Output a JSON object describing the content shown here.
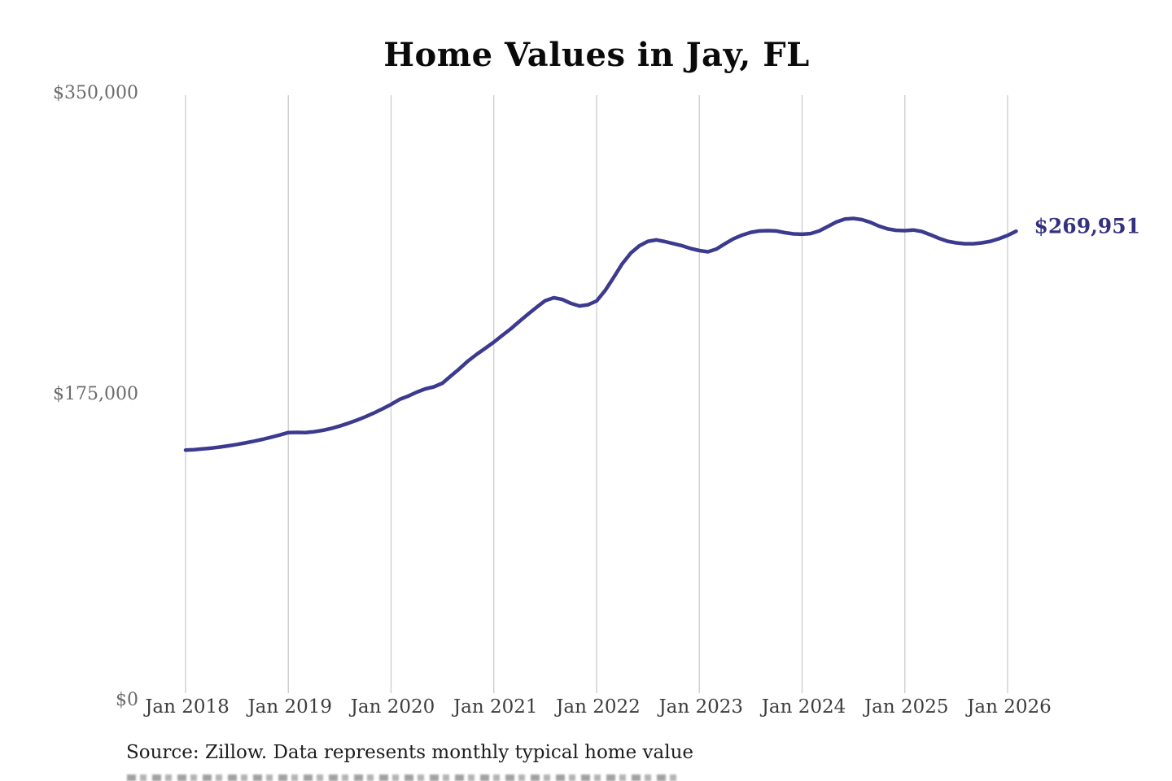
{
  "page": {
    "background": "#ffffff"
  },
  "header": {
    "title": "Home Values in Jay, FL"
  },
  "footer": {
    "source_caption": "Source: Zillow. Data represents monthly typical home value"
  },
  "colors": {
    "line": "#3c3a8f",
    "end_label": "#34317f",
    "gridline": "#cbcbcb",
    "title_text": "#0a0a0a",
    "y_tick_text": "#6b6b6b",
    "x_tick_text": "#3d3d3d",
    "source_text": "#1d1d1d",
    "background": "#ffffff"
  },
  "chart_data": {
    "type": "line",
    "title": "Home Values in Jay, FL",
    "xlabel": "",
    "ylabel": "",
    "ylim": [
      0,
      350000
    ],
    "grid": "vertical-only",
    "legend": "none",
    "y_ticks": [
      {
        "value": 0,
        "label": "$0"
      },
      {
        "value": 175000,
        "label": "$175,000"
      },
      {
        "value": 350000,
        "label": "$350,000"
      }
    ],
    "x_ticks": [
      "Jan 2018",
      "Jan 2019",
      "Jan 2020",
      "Jan 2021",
      "Jan 2022",
      "Jan 2023",
      "Jan 2024",
      "Jan 2025",
      "Jan 2026"
    ],
    "annotation": {
      "label": "$269,951",
      "value": 269951,
      "position": "line-end"
    },
    "series": [
      {
        "name": "Monthly typical home value",
        "months": [
          "2018-01",
          "2018-02",
          "2018-03",
          "2018-04",
          "2018-05",
          "2018-06",
          "2018-07",
          "2018-08",
          "2018-09",
          "2018-10",
          "2018-11",
          "2018-12",
          "2019-01",
          "2019-02",
          "2019-03",
          "2019-04",
          "2019-05",
          "2019-06",
          "2019-07",
          "2019-08",
          "2019-09",
          "2019-10",
          "2019-11",
          "2019-12",
          "2020-01",
          "2020-02",
          "2020-03",
          "2020-04",
          "2020-05",
          "2020-06",
          "2020-07",
          "2020-08",
          "2020-09",
          "2020-10",
          "2020-11",
          "2020-12",
          "2021-01",
          "2021-02",
          "2021-03",
          "2021-04",
          "2021-05",
          "2021-06",
          "2021-07",
          "2021-08",
          "2021-09",
          "2021-10",
          "2021-11",
          "2021-12",
          "2022-01",
          "2022-02",
          "2022-03",
          "2022-04",
          "2022-05",
          "2022-06",
          "2022-07",
          "2022-08",
          "2022-09",
          "2022-10",
          "2022-11",
          "2022-12",
          "2023-01",
          "2023-02",
          "2023-03",
          "2023-04",
          "2023-05",
          "2023-06",
          "2023-07",
          "2023-08",
          "2023-09",
          "2023-10",
          "2023-11",
          "2023-12",
          "2024-01",
          "2024-02",
          "2024-03",
          "2024-04",
          "2024-05",
          "2024-06",
          "2024-07",
          "2024-08",
          "2024-09",
          "2024-10",
          "2024-11",
          "2024-12",
          "2025-01",
          "2025-02",
          "2025-03",
          "2025-04",
          "2025-05",
          "2025-06",
          "2025-07",
          "2025-08",
          "2025-09",
          "2025-10",
          "2025-11",
          "2025-12",
          "2026-01",
          "2026-02"
        ],
        "values": [
          142700,
          143000,
          143400,
          143900,
          144500,
          145200,
          146000,
          146900,
          147900,
          149000,
          150200,
          151500,
          152900,
          153000,
          152900,
          153400,
          154200,
          155300,
          156700,
          158300,
          160100,
          162100,
          164300,
          166700,
          169300,
          172200,
          174100,
          176400,
          178300,
          179500,
          181600,
          185900,
          190100,
          194600,
          198400,
          201900,
          205500,
          209500,
          213300,
          217600,
          221800,
          225800,
          229600,
          231300,
          230300,
          228000,
          226500,
          227200,
          229400,
          235500,
          243100,
          251100,
          257300,
          261500,
          264100,
          264900,
          263900,
          262700,
          261500,
          259900,
          258700,
          258000,
          259600,
          262700,
          265600,
          267700,
          269300,
          270100,
          270300,
          270100,
          269100,
          268400,
          268200,
          268600,
          270100,
          272700,
          275300,
          277000,
          277400,
          276700,
          275100,
          272900,
          271300,
          270500,
          270300,
          270700,
          269800,
          267900,
          265800,
          264100,
          263200,
          262700,
          262700,
          263200,
          264100,
          265600,
          267500,
          269951
        ]
      }
    ]
  }
}
